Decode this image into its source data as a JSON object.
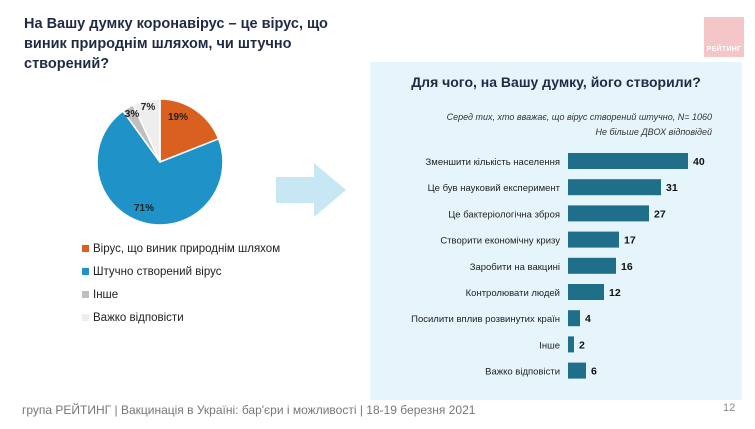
{
  "header": {
    "title": "На Вашу думку коронавірус – це вірус, що виник природнім шляхом, чи штучно створений?",
    "logo_text": "РЕЙТИНГ"
  },
  "colors": {
    "natural": "#d9601f",
    "artificial": "#1f93c8",
    "other": "#bfbfbf",
    "hard_to_say": "#eeeeee",
    "bar": "#1f6f8b",
    "panel_bg": "#e6f4fb",
    "arrow": "#c7e7f5"
  },
  "chart_data": [
    {
      "type": "pie",
      "categories": [
        "Вірус, що виник природнім шляхом",
        "Штучно створений вірус",
        "Інше",
        "Важко відповісти"
      ],
      "values": [
        19,
        71,
        3,
        7
      ],
      "labels": [
        "19%",
        "71%",
        "3%",
        "7%"
      ]
    },
    {
      "type": "bar",
      "orientation": "horizontal",
      "title": "Для чого, на Вашу думку, його створили?",
      "subtitle": "Серед тих, хто вважає, що вірус створений штучно, N= 1060",
      "note": "Не більше ДВОХ відповідей",
      "categories": [
        "Зменшити кількість населення",
        "Це був науковий експеримент",
        "Це бактеріологічна зброя",
        "Створити економічну кризу",
        "Заробити на вакцині",
        "Контролювати людей",
        "Посилити вплив розвинутих країн",
        "Інше",
        "Важко відповісти"
      ],
      "values": [
        40,
        31,
        27,
        17,
        16,
        12,
        4,
        2,
        6
      ]
    }
  ],
  "footer": {
    "text": "група РЕЙТИНГ | Вакцинація в Україні: бар'єри і можливості | 18-19 березня 2021",
    "page": "12"
  }
}
